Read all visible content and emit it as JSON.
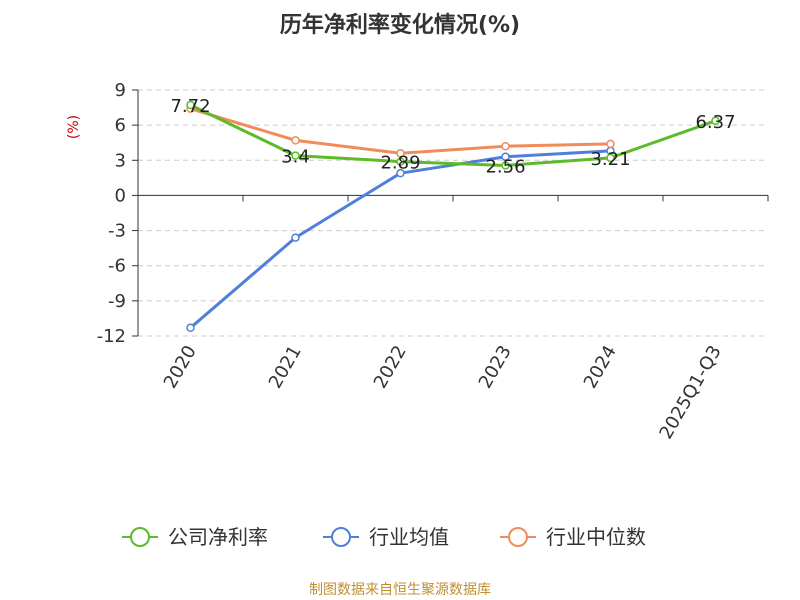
{
  "chart_data": {
    "type": "line",
    "title": "历年净利率变化情况(%)",
    "ylabel": "(%)",
    "xlabel": "",
    "categories": [
      "2020",
      "2021",
      "2022",
      "2023",
      "2024",
      "2025Q1-Q3"
    ],
    "ylim": [
      -12,
      9
    ],
    "yticks": [
      9,
      6,
      3,
      0,
      -3,
      -6,
      -9,
      -12
    ],
    "grid": true,
    "legend_position": "bottom",
    "series": [
      {
        "name": "公司净利率",
        "color": "#5dbb2a",
        "values": [
          7.72,
          3.4,
          2.89,
          2.56,
          3.21,
          6.37
        ],
        "labels": [
          "7.72",
          "3.4",
          "2.89",
          "2.56",
          "3.21",
          "6.37"
        ]
      },
      {
        "name": "行业均值",
        "color": "#4f7fdb",
        "values": [
          -11.3,
          -3.6,
          1.9,
          3.3,
          3.8,
          null
        ]
      },
      {
        "name": "行业中位数",
        "color": "#f08c5a",
        "values": [
          7.4,
          4.7,
          3.6,
          4.2,
          4.4,
          null
        ]
      }
    ]
  },
  "footer": {
    "source": "制图数据来自恒生聚源数据库"
  }
}
